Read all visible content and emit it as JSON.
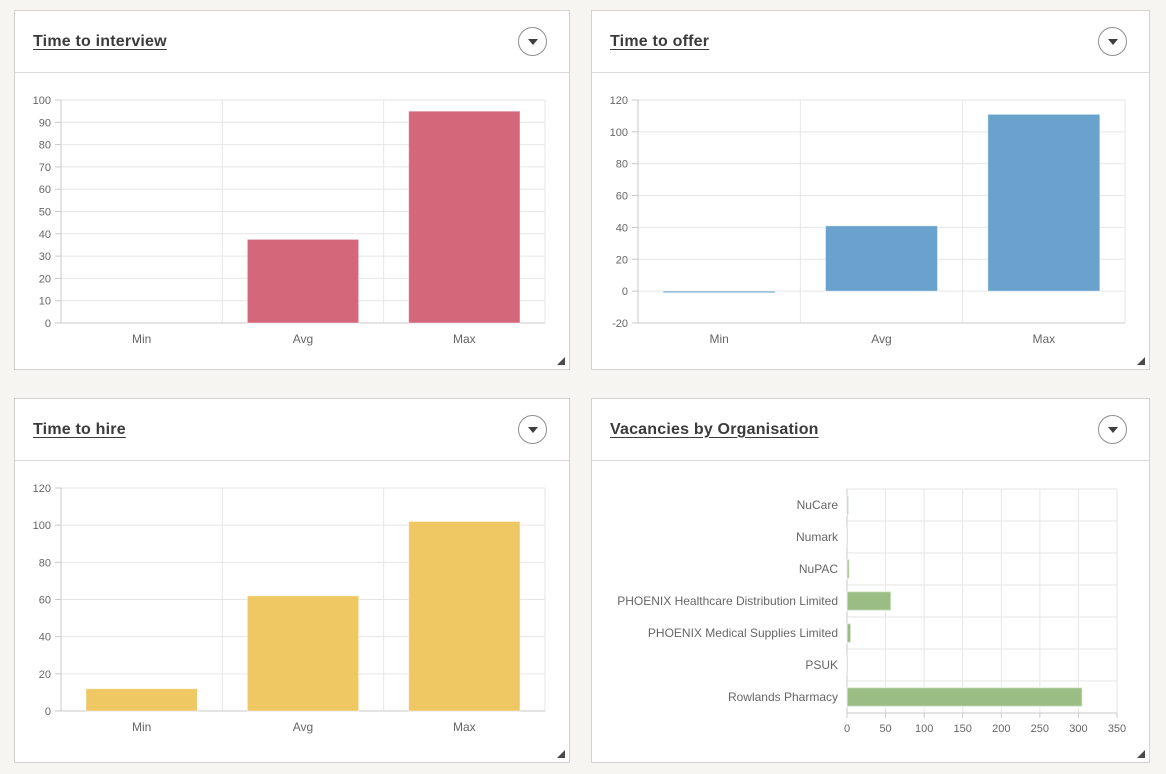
{
  "theme": {
    "page_bg": "#f6f5f2",
    "panel_bg": "#ffffff",
    "panel_border": "#d5d3d0",
    "grid_color": "#e6e6e6",
    "axis_color": "#c9c9c9",
    "tick_text_color": "#666666",
    "title_color": "#3b3b3b"
  },
  "icons": {
    "panel_menu": "chevron-down-icon",
    "panel_resize": "resize-grip-icon"
  },
  "chart_data": [
    {
      "panel_title": "Time to interview",
      "type": "bar",
      "orientation": "vertical",
      "categories": [
        "Min",
        "Avg",
        "Max"
      ],
      "values": [
        0,
        37.5,
        95
      ],
      "color": "#d4687a",
      "ylim": [
        0,
        100
      ],
      "yticks": [
        0,
        10,
        20,
        30,
        40,
        50,
        60,
        70,
        80,
        90,
        100
      ],
      "grid": true,
      "legend": "none"
    },
    {
      "panel_title": "Time to offer",
      "type": "bar",
      "orientation": "vertical",
      "categories": [
        "Min",
        "Avg",
        "Max"
      ],
      "values": [
        -1,
        41,
        111
      ],
      "color": "#69a2cd",
      "ylim": [
        -20,
        120
      ],
      "yticks": [
        -20,
        0,
        20,
        40,
        60,
        80,
        100,
        120
      ],
      "grid": true,
      "legend": "none"
    },
    {
      "panel_title": "Time to hire",
      "type": "bar",
      "orientation": "vertical",
      "categories": [
        "Min",
        "Avg",
        "Max"
      ],
      "values": [
        12,
        62,
        102
      ],
      "color": "#efc864",
      "ylim": [
        0,
        120
      ],
      "yticks": [
        0,
        20,
        40,
        60,
        80,
        100,
        120
      ],
      "grid": true,
      "legend": "none"
    },
    {
      "panel_title": "Vacancies by Organisation",
      "type": "bar",
      "orientation": "horizontal",
      "categories": [
        "NuCare",
        "Numark",
        "NuPAC",
        "PHOENIX Healthcare Distribution Limited",
        "PHOENIX Medical Supplies Limited",
        "PSUK",
        "Rowlands Pharmacy"
      ],
      "values": [
        2,
        1,
        3,
        57,
        5,
        1,
        305
      ],
      "color": "#99bd83",
      "xlim": [
        0,
        350
      ],
      "xticks": [
        0,
        50,
        100,
        150,
        200,
        250,
        300,
        350
      ],
      "grid": true,
      "legend": "none"
    }
  ]
}
